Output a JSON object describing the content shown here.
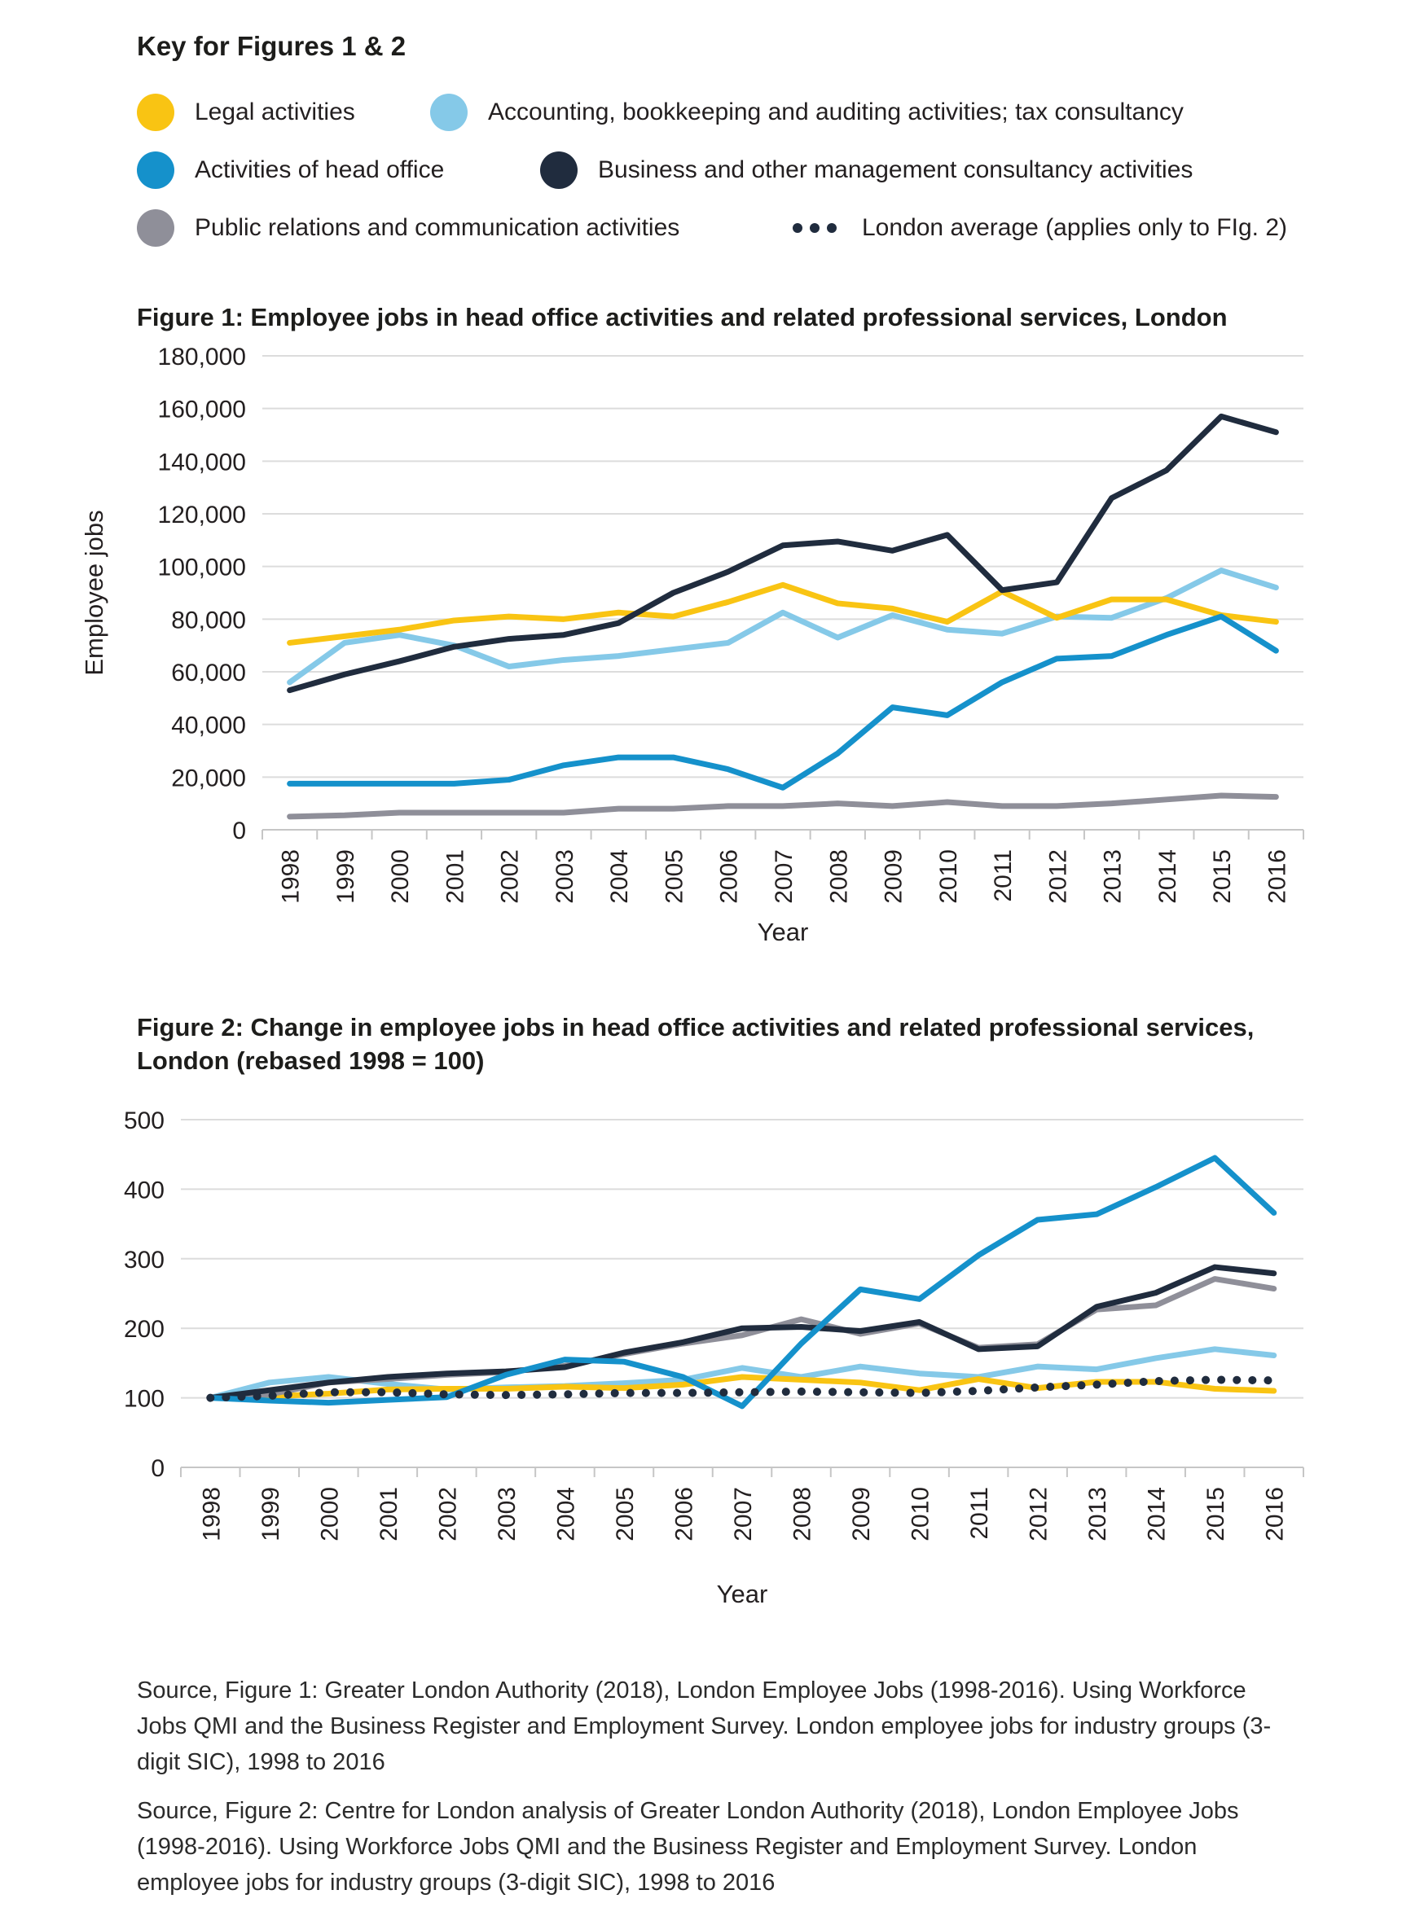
{
  "key": {
    "title": "Key for Figures 1 & 2",
    "rows": [
      {
        "items": [
          {
            "label": "Legal activities",
            "color": "#F9C413",
            "marker": "dot"
          },
          {
            "label": "Accounting, bookkeeping and auditing activities; tax consultancy",
            "color": "#85C9E8",
            "marker": "dot"
          }
        ]
      },
      {
        "items": [
          {
            "label": "Activities of head office",
            "color": "#1591CB",
            "marker": "dot"
          },
          {
            "label": "Business and other management consultancy activities",
            "color": "#202C3E",
            "marker": "dot"
          }
        ]
      },
      {
        "items": [
          {
            "label": "Public relations and communication activities",
            "color": "#8F8F99",
            "marker": "dot"
          },
          {
            "label": "London average (applies only to FIg. 2)",
            "color": "#202C3E",
            "marker": "dotted-line"
          }
        ]
      }
    ]
  },
  "chart_data": [
    {
      "id": "figure1",
      "type": "line",
      "title": "Figure 1: Employee jobs in head office activities and related professional services, London",
      "xlabel": "Year",
      "ylabel": "Employee jobs",
      "ylim": [
        0,
        180000
      ],
      "grid": true,
      "legend_position": "shared-key-above",
      "categories": [
        "1998",
        "1999",
        "2000",
        "2001",
        "2002",
        "2003",
        "2004",
        "2005",
        "2006",
        "2007",
        "2008",
        "2009",
        "2010",
        "2011",
        "2012",
        "2013",
        "2014",
        "2015",
        "2016"
      ],
      "yticks": [
        {
          "v": 180000,
          "label": "180,000"
        },
        {
          "v": 160000,
          "label": "160,000"
        },
        {
          "v": 140000,
          "label": "140,000"
        },
        {
          "v": 120000,
          "label": "120,000"
        },
        {
          "v": 100000,
          "label": "100,000"
        },
        {
          "v": 80000,
          "label": "80,000"
        },
        {
          "v": 60000,
          "label": "60,000"
        },
        {
          "v": 40000,
          "label": "40,000"
        },
        {
          "v": 20000,
          "label": "20,000"
        },
        {
          "v": 0,
          "label": "0"
        }
      ],
      "series": [
        {
          "name": "Accounting, bookkeeping and auditing activities; tax consultancy",
          "color": "#85C9E8",
          "style": "solid",
          "values": [
            56000,
            71000,
            74000,
            70000,
            62000,
            64500,
            66000,
            68500,
            71000,
            82500,
            73000,
            81500,
            76000,
            74500,
            81000,
            80500,
            88000,
            98500,
            92000
          ]
        },
        {
          "name": "Legal activities",
          "color": "#F9C413",
          "style": "solid",
          "values": [
            71000,
            73500,
            76000,
            79500,
            81000,
            80000,
            82500,
            81000,
            86500,
            93000,
            86000,
            84000,
            79000,
            90500,
            80500,
            87500,
            87500,
            81500,
            79000
          ]
        },
        {
          "name": "Public relations and communication activities",
          "color": "#8F8F99",
          "style": "solid",
          "values": [
            5000,
            5500,
            6500,
            6500,
            6500,
            6500,
            8000,
            8000,
            9000,
            9000,
            10000,
            9000,
            10500,
            9000,
            9000,
            10000,
            11500,
            13000,
            12500
          ]
        },
        {
          "name": "Business and other management consultancy activities",
          "color": "#202C3E",
          "style": "solid",
          "values": [
            53000,
            59000,
            64000,
            69500,
            72500,
            74000,
            78500,
            90000,
            98000,
            108000,
            109500,
            106000,
            112000,
            91000,
            94000,
            126000,
            136500,
            157000,
            151000
          ]
        },
        {
          "name": "Activities of head office",
          "color": "#1591CB",
          "style": "solid",
          "values": [
            17500,
            17500,
            17500,
            17500,
            19000,
            24500,
            27500,
            27500,
            23000,
            16000,
            29000,
            46500,
            43500,
            56000,
            65000,
            66000,
            74000,
            81000,
            68000
          ]
        }
      ]
    },
    {
      "id": "figure2",
      "type": "line",
      "title": "Figure 2: Change in employee jobs in head office activities and related professional services, London (rebased 1998 = 100)",
      "xlabel": "Year",
      "ylabel": "",
      "ylim": [
        0,
        500
      ],
      "grid": true,
      "legend_position": "shared-key-above",
      "categories": [
        "1998",
        "1999",
        "2000",
        "2001",
        "2002",
        "2003",
        "2004",
        "2005",
        "2006",
        "2007",
        "2008",
        "2009",
        "2010",
        "2011",
        "2012",
        "2013",
        "2014",
        "2015",
        "2016"
      ],
      "yticks": [
        {
          "v": 500,
          "label": "500"
        },
        {
          "v": 400,
          "label": "400"
        },
        {
          "v": 300,
          "label": "300"
        },
        {
          "v": 200,
          "label": "200"
        },
        {
          "v": 100,
          "label": "100"
        },
        {
          "v": 0,
          "label": "0"
        }
      ],
      "series": [
        {
          "name": "Accounting, bookkeeping and auditing activities; tax consultancy",
          "color": "#85C9E8",
          "style": "solid",
          "values": [
            100,
            122,
            130,
            120,
            112,
            115,
            117,
            121,
            126,
            143,
            130,
            145,
            135,
            130,
            145,
            141,
            157,
            170,
            161
          ]
        },
        {
          "name": "Legal activities",
          "color": "#F9C413",
          "style": "solid",
          "values": [
            100,
            102,
            106,
            112,
            113,
            113,
            116,
            114,
            119,
            130,
            126,
            122,
            111,
            127,
            114,
            123,
            123,
            113,
            110
          ]
        },
        {
          "name": "Public relations and communication activities",
          "color": "#8F8F99",
          "style": "solid",
          "values": [
            100,
            105,
            122,
            127,
            133,
            137,
            146,
            163,
            178,
            190,
            213,
            192,
            207,
            172,
            177,
            227,
            233,
            271,
            257
          ]
        },
        {
          "name": "Business and other management consultancy activities",
          "color": "#202C3E",
          "style": "solid",
          "values": [
            100,
            111,
            122,
            130,
            135,
            138,
            144,
            165,
            180,
            200,
            202,
            196,
            209,
            170,
            174,
            231,
            251,
            288,
            279
          ]
        },
        {
          "name": "Activities of head office",
          "color": "#1591CB",
          "style": "solid",
          "values": [
            100,
            96,
            93,
            97,
            101,
            133,
            155,
            152,
            130,
            88,
            178,
            256,
            242,
            305,
            356,
            364,
            403,
            445,
            366
          ]
        },
        {
          "name": "London average (applies only to FIg. 2)",
          "color": "#202C3E",
          "style": "dotted",
          "values": [
            100,
            103,
            108,
            108,
            105,
            104,
            105,
            107,
            107,
            108,
            109,
            108,
            107,
            110,
            115,
            119,
            124,
            126,
            125
          ]
        }
      ]
    }
  ],
  "sources": {
    "figure1": "Source, Figure 1: Greater London Authority (2018), London Employee Jobs (1998-2016). Using Workforce Jobs QMI and the Business Register and Employment Survey. London employee jobs for industry groups (3-digit SIC), 1998 to 2016",
    "figure2": "Source, Figure 2: Centre for London analysis of Greater London Authority (2018), London Employee Jobs (1998-2016). Using Workforce Jobs QMI and the Business Register and Employment Survey. London employee jobs for industry groups (3-digit SIC), 1998 to 2016"
  }
}
